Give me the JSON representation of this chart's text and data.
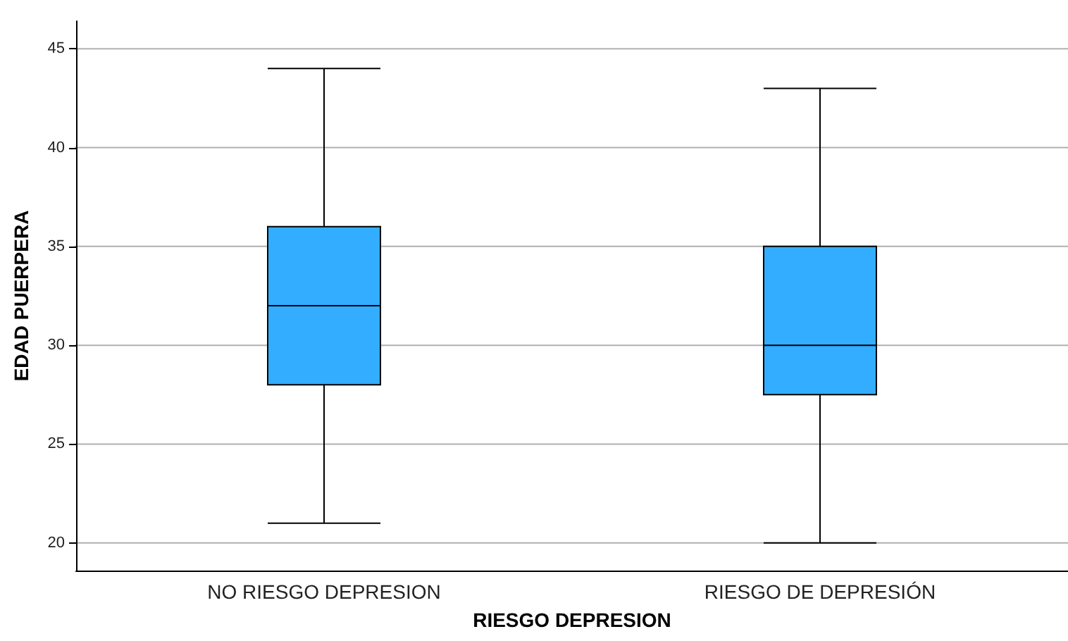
{
  "chart_data": {
    "type": "box",
    "xlabel": "RIESGO DEPRESION",
    "ylabel": "EDAD PUERPERA",
    "categories": [
      "NO RIESGO DEPRESION",
      "RIESGO DE DEPRESIÓN"
    ],
    "color": "#33adff",
    "boxes": [
      {
        "low": 21,
        "q1": 28,
        "median": 32,
        "q3": 36,
        "high": 44
      },
      {
        "low": 20,
        "q1": 27.5,
        "median": 30,
        "q3": 35,
        "high": 43
      }
    ],
    "ylim": [
      18.6,
      46.4
    ],
    "yticks": [
      20,
      25,
      30,
      35,
      40,
      45
    ],
    "grid": "y"
  }
}
